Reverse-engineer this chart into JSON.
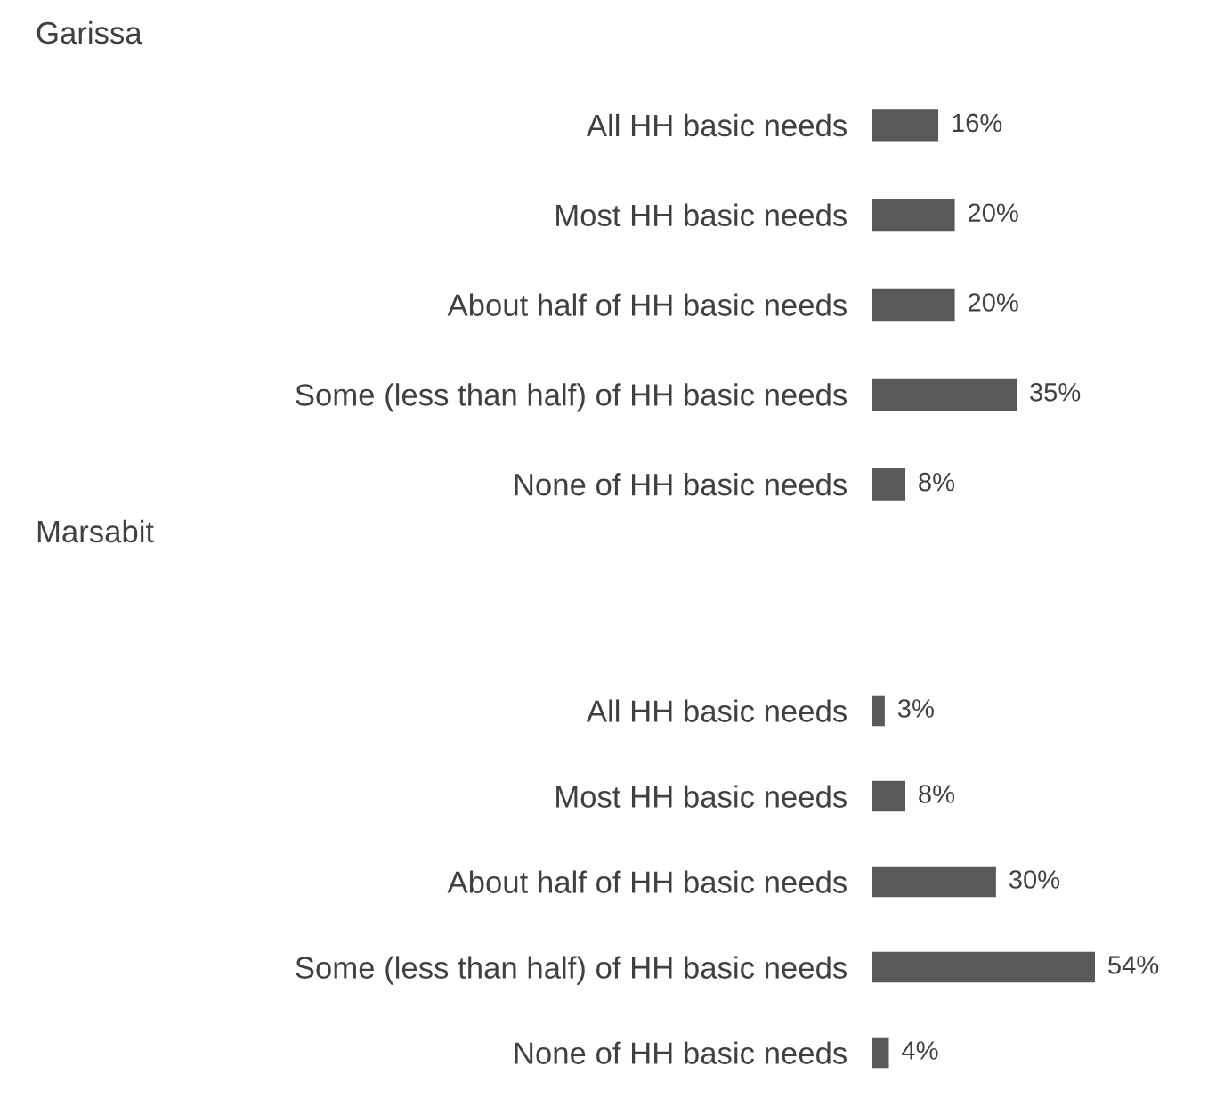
{
  "chart_data": [
    {
      "type": "bar",
      "orientation": "horizontal",
      "title": "Garissa",
      "categories": [
        "All HH basic needs",
        "Most HH basic needs",
        "About half of HH basic needs",
        "Some (less than half) of HH basic needs",
        "None of HH basic needs"
      ],
      "values": [
        16,
        20,
        20,
        35,
        8
      ],
      "value_labels": [
        "16%",
        "20%",
        "20%",
        "35%",
        "8%"
      ],
      "color": "#595959",
      "grid": false,
      "legend": false
    },
    {
      "type": "bar",
      "orientation": "horizontal",
      "title": "Marsabit",
      "categories": [
        "All HH basic needs",
        "Most HH basic needs",
        "About half of HH basic needs",
        "Some (less than half) of HH basic needs",
        "None of HH basic needs"
      ],
      "values": [
        3,
        8,
        30,
        54,
        4
      ],
      "value_labels": [
        "3%",
        "8%",
        "30%",
        "54%",
        "4%"
      ],
      "color": "#595959",
      "grid": false,
      "legend": false
    }
  ]
}
